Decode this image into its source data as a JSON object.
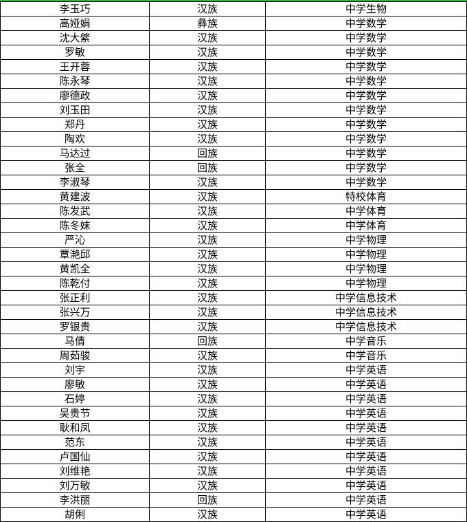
{
  "table": {
    "rows": [
      [
        "李玉巧",
        "汉族",
        "中学生物"
      ],
      [
        "高娅娟",
        "彝族",
        "中学数学"
      ],
      [
        "沈大綮",
        "汉族",
        "中学数学"
      ],
      [
        "罗敏",
        "汉族",
        "中学数学"
      ],
      [
        "王开蓉",
        "汉族",
        "中学数学"
      ],
      [
        "陈永琴",
        "汉族",
        "中学数学"
      ],
      [
        "廖德政",
        "汉族",
        "中学数学"
      ],
      [
        "刘玉田",
        "汉族",
        "中学数学"
      ],
      [
        "郑丹",
        "汉族",
        "中学数学"
      ],
      [
        "陶欢",
        "汉族",
        "中学数学"
      ],
      [
        "马达过",
        "回族",
        "中学数学"
      ],
      [
        "张全",
        "回族",
        "中学数学"
      ],
      [
        "李淑琴",
        "汉族",
        "中学数学"
      ],
      [
        "黄建波",
        "汉族",
        "特校体育"
      ],
      [
        "陈发武",
        "汉族",
        "中学体育"
      ],
      [
        "陈冬妹",
        "汉族",
        "中学体育"
      ],
      [
        "严沁",
        "汉族",
        "中学物理"
      ],
      [
        "覃滟邱",
        "汉族",
        "中学物理"
      ],
      [
        "黄凯全",
        "汉族",
        "中学物理"
      ],
      [
        "陈乾付",
        "汉族",
        "中学物理"
      ],
      [
        "张正利",
        "汉族",
        "中学信息技术"
      ],
      [
        "张兴万",
        "汉族",
        "中学信息技术"
      ],
      [
        "罗银贵",
        "汉族",
        "中学信息技术"
      ],
      [
        "马倩",
        "回族",
        "中学音乐"
      ],
      [
        "周茹骏",
        "汉族",
        "中学音乐"
      ],
      [
        "刘宇",
        "汉族",
        "中学英语"
      ],
      [
        "廖敏",
        "汉族",
        "中学英语"
      ],
      [
        "石婷",
        "汉族",
        "中学英语"
      ],
      [
        "吴贵节",
        "汉族",
        "中学英语"
      ],
      [
        "耿和凤",
        "汉族",
        "中学英语"
      ],
      [
        "范东",
        "汉族",
        "中学英语"
      ],
      [
        "卢国仙",
        "汉族",
        "中学英语"
      ],
      [
        "刘维艳",
        "汉族",
        "中学英语"
      ],
      [
        "刘万敏",
        "汉族",
        "中学英语"
      ],
      [
        "李洪丽",
        "回族",
        "中学英语"
      ],
      [
        "胡俐",
        "汉族",
        "中学英语"
      ]
    ]
  }
}
